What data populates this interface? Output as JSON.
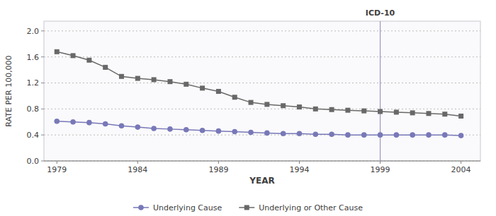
{
  "chart_data": {
    "type": "line",
    "x": [
      1979,
      1980,
      1981,
      1982,
      1983,
      1984,
      1985,
      1986,
      1987,
      1988,
      1989,
      1990,
      1991,
      1992,
      1993,
      1994,
      1995,
      1996,
      1997,
      1998,
      1999,
      2000,
      2001,
      2002,
      2003,
      2004
    ],
    "series": [
      {
        "name": "Underlying Cause",
        "color": "#7878b8",
        "marker": "circle",
        "values": [
          0.61,
          0.6,
          0.59,
          0.57,
          0.54,
          0.52,
          0.5,
          0.49,
          0.48,
          0.47,
          0.46,
          0.45,
          0.44,
          0.43,
          0.42,
          0.42,
          0.41,
          0.41,
          0.4,
          0.4,
          0.4,
          0.4,
          0.4,
          0.4,
          0.4,
          0.39
        ]
      },
      {
        "name": "Underlying or Other Cause",
        "color": "#686868",
        "marker": "square",
        "values": [
          1.68,
          1.62,
          1.55,
          1.44,
          1.3,
          1.27,
          1.25,
          1.22,
          1.18,
          1.12,
          1.07,
          0.98,
          0.9,
          0.87,
          0.85,
          0.83,
          0.8,
          0.79,
          0.78,
          0.77,
          0.76,
          0.75,
          0.74,
          0.73,
          0.72,
          0.69
        ]
      }
    ],
    "x_label": "YEAR",
    "y_label": "RATE PER 100,000",
    "xlim": [
      1978.2,
      2005.2
    ],
    "xticks": [
      1979,
      1984,
      1989,
      1994,
      1999,
      2004
    ],
    "ylim": [
      0.0,
      2.15
    ],
    "yticks": [
      {
        "value": 0.0,
        "label": "0.0"
      },
      0.4,
      0.8,
      1.2,
      1.6,
      {
        "value": 2.0,
        "label": "2.0"
      }
    ],
    "annotations": [
      {
        "text": "ICD-10",
        "x": 1999
      }
    ],
    "grid": true,
    "legend": "bottom"
  }
}
